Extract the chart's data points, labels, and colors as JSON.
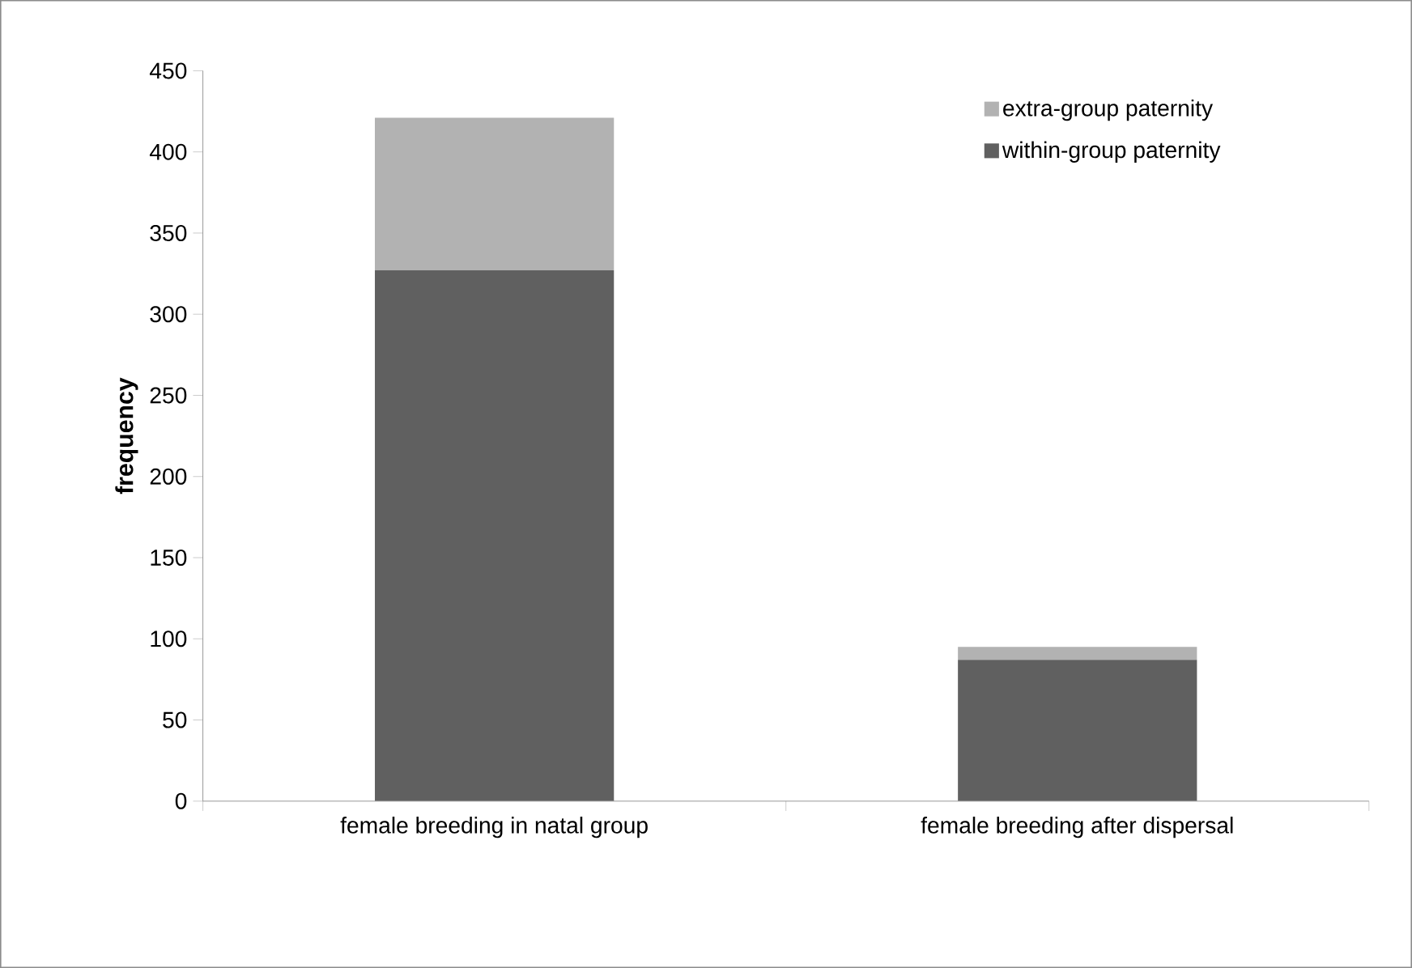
{
  "chart_data": {
    "type": "bar",
    "stacked": true,
    "ylabel": "frequency",
    "categories": [
      "female breeding in natal group",
      "female breeding after dispersal"
    ],
    "series": [
      {
        "name": "within-group paternity",
        "color": "#606060",
        "values": [
          327,
          87
        ]
      },
      {
        "name": "extra-group paternity",
        "color": "#b2b2b2",
        "values": [
          94,
          8
        ]
      }
    ],
    "ylim": [
      0,
      450
    ],
    "yticks": [
      0,
      50,
      100,
      150,
      200,
      250,
      300,
      350,
      400,
      450
    ],
    "legend": "top right",
    "grid": false
  }
}
